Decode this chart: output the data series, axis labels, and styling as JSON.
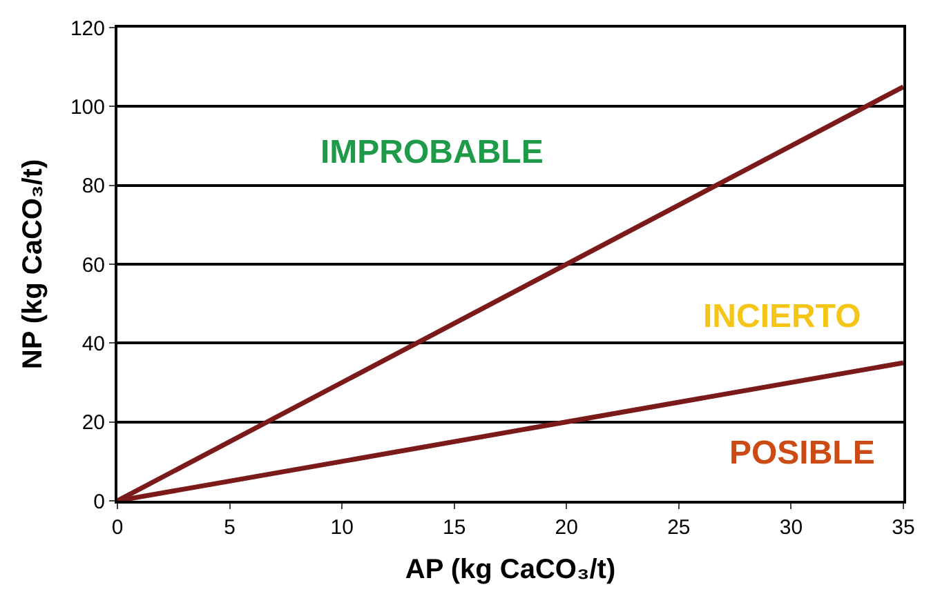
{
  "chart_data": {
    "type": "line",
    "xlabel": "AP (kg CaCO₃/t)",
    "ylabel": "NP (kg CaCO₃/t)",
    "x": [
      0,
      35
    ],
    "series": [
      {
        "color": "#7b1a1a",
        "values": [
          0,
          105
        ]
      },
      {
        "color": "#7b1a1a",
        "values": [
          0,
          35
        ]
      }
    ],
    "annotations": [
      "IMPROBABLE",
      "INCIERTO",
      "POSIBLE"
    ],
    "xlim": [
      0,
      35
    ],
    "ylim": [
      0,
      120
    ],
    "xticks": [
      0,
      5,
      10,
      15,
      20,
      25,
      30,
      35
    ],
    "yticks": [
      0,
      20,
      40,
      60,
      80,
      100,
      120
    ],
    "grid": "y",
    "marker": "none",
    "line_style": "solid"
  }
}
